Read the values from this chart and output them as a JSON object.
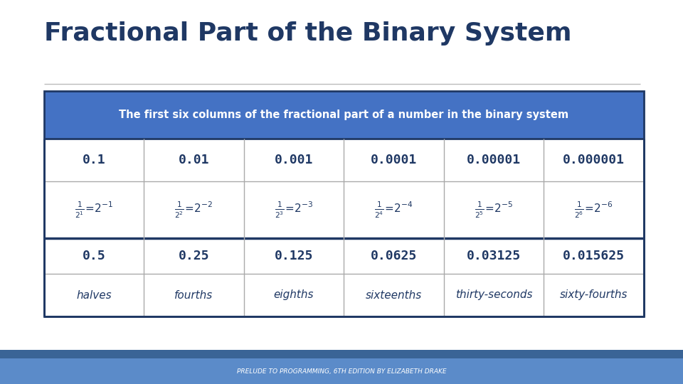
{
  "title": "Fractional Part of the Binary System",
  "title_color": "#1F3864",
  "subtitle": "The first six columns of the fractional part of a number in the binary system",
  "subtitle_bg": "#4472C4",
  "subtitle_text_color": "#FFFFFF",
  "bg_color": "#FFFFFF",
  "table_border_color": "#1F3864",
  "footer_text": "PRELUDE TO PROGRAMMING, 6TH EDITION BY ELIZABETH DRAKE",
  "footer_bg": "#5B8BC9",
  "footer_dark_bg": "#3A6496",
  "footer_text_color": "#FFFFFF",
  "row1": [
    "0.1",
    "0.01",
    "0.001",
    "0.0001",
    "0.00001",
    "0.000001"
  ],
  "row3": [
    "0.5",
    "0.25",
    "0.125",
    "0.0625",
    "0.03125",
    "0.015625"
  ],
  "row4": [
    "halves",
    "fourths",
    "eighths",
    "sixteenths",
    "thirty-seconds",
    "sixty-fourths"
  ],
  "fractions_exp": [
    "-1",
    "-2",
    "-3",
    "-4",
    "-5",
    "-6"
  ],
  "cell_text_color": "#1F3864",
  "thin_line_color": "#AAAAAA",
  "thick_line_color": "#1F3864"
}
